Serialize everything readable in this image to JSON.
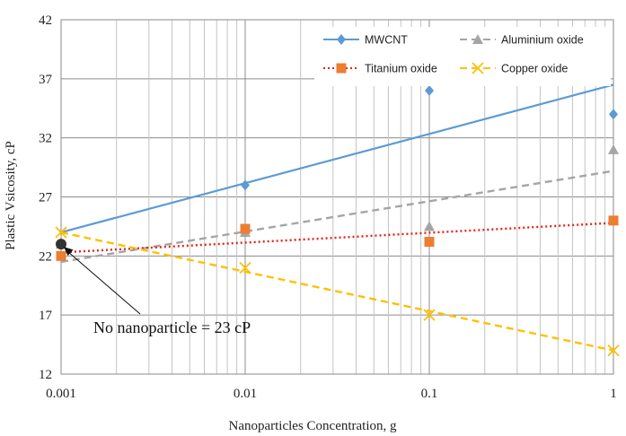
{
  "chart_data": {
    "type": "scatter",
    "xscale": "log",
    "xlim": [
      0.001,
      1
    ],
    "ylim": [
      12,
      42
    ],
    "xticks": [
      "0.001",
      "0.01",
      "0.1",
      "1"
    ],
    "yticks": [
      "12",
      "17",
      "22",
      "27",
      "32",
      "37",
      "42"
    ],
    "xlabel": "Nanoparticles Concentration, g",
    "ylabel": "Plastic Vsicosity, cP",
    "grid": true,
    "legend_position": "top-right",
    "series": [
      {
        "name": "MWCNT",
        "color": "#5b9bd5",
        "marker": "diamond",
        "line": "solid",
        "x": [
          0.001,
          0.01,
          0.1,
          1
        ],
        "y": [
          23.0,
          28.0,
          36.0,
          34.0
        ],
        "trend": {
          "x": [
            0.001,
            1
          ],
          "y": [
            24.0,
            36.5
          ]
        }
      },
      {
        "name": "Aluminium oxide",
        "color": "#a5a5a5",
        "marker": "triangle",
        "line": "dashed",
        "x": [
          0.001,
          0.01,
          0.1,
          1
        ],
        "y": [
          23.0,
          24.0,
          24.5,
          31.0
        ],
        "trend": {
          "x": [
            0.001,
            1
          ],
          "y": [
            21.5,
            29.2
          ]
        }
      },
      {
        "name": "Titanium oxide",
        "color": "#ed7d31",
        "marker": "square",
        "line": "dotted",
        "x": [
          0.001,
          0.01,
          0.1,
          1
        ],
        "y": [
          22.0,
          24.3,
          23.2,
          25.0
        ],
        "trend": {
          "x": [
            0.001,
            1
          ],
          "y": [
            22.3,
            24.8
          ]
        }
      },
      {
        "name": "Copper oxide",
        "color": "#ffc000",
        "marker": "x",
        "line": "dashed",
        "x": [
          0.001,
          0.01,
          0.1,
          1
        ],
        "y": [
          24.0,
          21.0,
          17.0,
          14.0
        ],
        "trend": {
          "x": [
            0.001,
            1
          ],
          "y": [
            24.0,
            14.0
          ]
        }
      }
    ],
    "annotation": {
      "text": "No nanoparticle = 23 cP",
      "x": 0.001,
      "y": 23
    }
  }
}
